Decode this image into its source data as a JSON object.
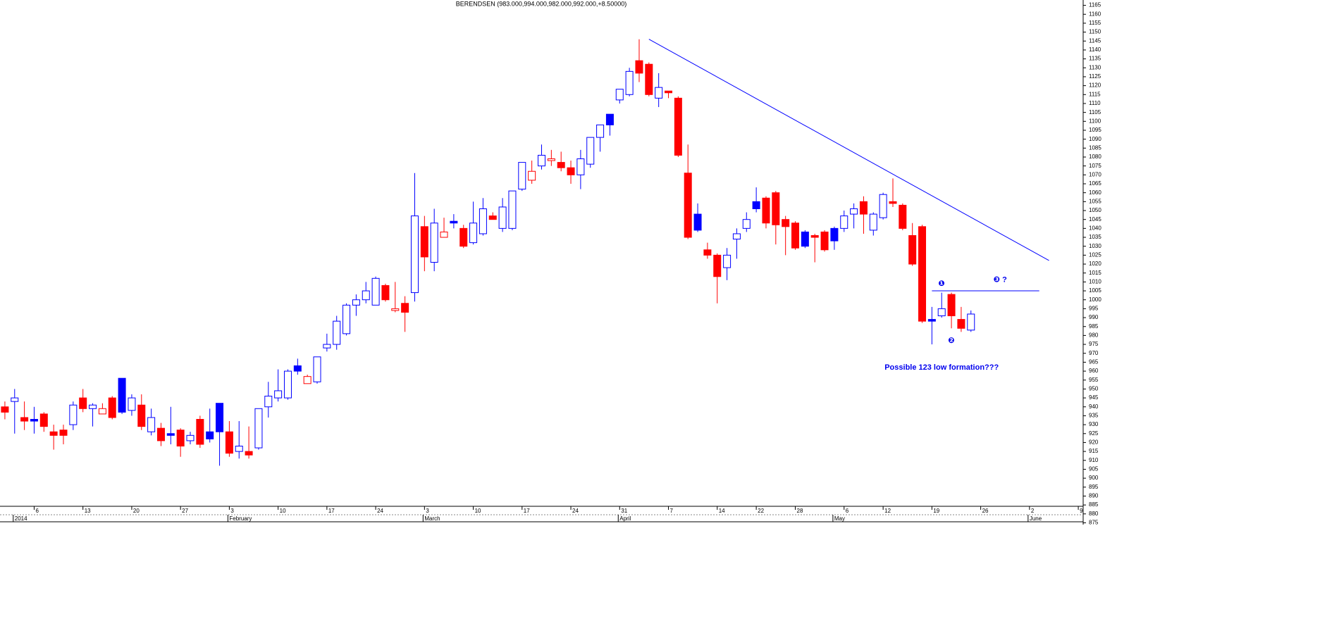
{
  "chart_data": {
    "type": "candlestick",
    "title": "BERENDSEN (983.000,994.000,982.000,992.000,+8.50000)",
    "open": [
      940,
      943,
      934,
      932,
      936,
      926,
      927,
      930,
      945,
      939,
      936,
      945,
      937,
      938,
      941,
      926,
      928,
      924,
      927,
      921,
      933,
      922,
      926,
      926,
      915,
      915,
      917,
      940,
      945,
      945,
      960,
      953,
      954,
      973,
      975,
      981,
      997,
      1000,
      997,
      1008,
      994,
      998,
      1004,
      1041,
      1021,
      1035,
      1043,
      1040,
      1032,
      1037,
      1047,
      1040,
      1040,
      1062,
      1067,
      1075,
      1078,
      1077,
      1074,
      1070,
      1076,
      1091,
      1098,
      1112,
      1115,
      1134,
      1132,
      1113,
      1117,
      1113,
      1071,
      1039,
      1028,
      1025,
      1018,
      1034,
      1040,
      1051,
      1057,
      1060,
      1045,
      1043,
      1030,
      1036,
      1038,
      1033,
      1040,
      1048,
      1055,
      1039,
      1046,
      1055,
      1053,
      1036,
      1041,
      988,
      991,
      1003,
      989,
      983
    ],
    "high": [
      943,
      950,
      943,
      940,
      937,
      930,
      930,
      943,
      950,
      942,
      942,
      946,
      956,
      947,
      947,
      939,
      931,
      940,
      928,
      926,
      935,
      939,
      942,
      932,
      932,
      929,
      939,
      954,
      961,
      961,
      967,
      958,
      968,
      981,
      991,
      998,
      1003,
      1010,
      1013,
      1009,
      1010,
      1002,
      1071,
      1047,
      1051,
      1046,
      1048,
      1042,
      1055,
      1057,
      1049,
      1057,
      1061,
      1077,
      1078,
      1087,
      1084,
      1083,
      1078,
      1084,
      1091,
      1098,
      1104,
      1118,
      1130,
      1146,
      1133,
      1127,
      1117,
      1114,
      1087,
      1054,
      1032,
      1026,
      1029,
      1040,
      1049,
      1063,
      1058,
      1061,
      1047,
      1044,
      1039,
      1037,
      1039,
      1041,
      1050,
      1054,
      1058,
      1049,
      1060,
      1068,
      1054,
      1043,
      1042,
      996,
      1004,
      1004,
      996,
      994
    ],
    "low": [
      933,
      925,
      927,
      925,
      926,
      916,
      919,
      927,
      937,
      929,
      936,
      933,
      936,
      935,
      927,
      924,
      918,
      919,
      912,
      919,
      917,
      920,
      907,
      912,
      911,
      911,
      916,
      934,
      943,
      944,
      958,
      953,
      953,
      971,
      972,
      980,
      991,
      998,
      997,
      999,
      993,
      982,
      999,
      1016,
      1016,
      1035,
      1040,
      1029,
      1031,
      1036,
      1045,
      1038,
      1039,
      1061,
      1065,
      1073,
      1075,
      1072,
      1065,
      1062,
      1074,
      1083,
      1092,
      1110,
      1114,
      1122,
      1114,
      1108,
      1113,
      1080,
      1034,
      1038,
      1023,
      998,
      1011,
      1023,
      1038,
      1049,
      1040,
      1031,
      1025,
      1028,
      1029,
      1021,
      1027,
      1028,
      1038,
      1040,
      1037,
      1036,
      1045,
      1052,
      1039,
      1019,
      987,
      975,
      990,
      984,
      982,
      982
    ],
    "close": [
      937,
      945,
      932,
      933,
      929,
      924,
      924,
      941,
      939,
      941,
      939,
      934,
      956,
      945,
      929,
      934,
      921,
      925,
      918,
      924,
      919,
      926,
      942,
      914,
      918,
      913,
      939,
      946,
      949,
      960,
      963,
      957,
      968,
      975,
      988,
      997,
      1000,
      1005,
      1012,
      1000,
      995,
      993,
      1047,
      1024,
      1043,
      1038,
      1044,
      1030,
      1043,
      1051,
      1045,
      1052,
      1061,
      1077,
      1072,
      1081,
      1079,
      1074,
      1070,
      1079,
      1091,
      1098,
      1104,
      1118,
      1128,
      1127,
      1115,
      1119,
      1116,
      1081,
      1035,
      1048,
      1025,
      1013,
      1025,
      1037,
      1045,
      1055,
      1043,
      1042,
      1041,
      1029,
      1038,
      1035,
      1028,
      1040,
      1047,
      1051,
      1048,
      1048,
      1059,
      1054,
      1040,
      1020,
      988,
      989,
      995,
      991,
      984,
      992
    ],
    "styles": [
      "R",
      "b",
      "R",
      "B",
      "R",
      "R",
      "R",
      "b",
      "R",
      "b",
      "r",
      "R",
      "B",
      "b",
      "R",
      "b",
      "R",
      "B",
      "R",
      "b",
      "R",
      "B",
      "B",
      "R",
      "b",
      "R",
      "b",
      "b",
      "b",
      "b",
      "B",
      "r",
      "b",
      "b",
      "b",
      "b",
      "b",
      "b",
      "b",
      "R",
      "r",
      "R",
      "b",
      "R",
      "b",
      "r",
      "B",
      "R",
      "b",
      "b",
      "R",
      "b",
      "b",
      "b",
      "r",
      "b",
      "r",
      "R",
      "R",
      "b",
      "b",
      "b",
      "B",
      "b",
      "b",
      "R",
      "R",
      "b",
      "R",
      "R",
      "R",
      "B",
      "R",
      "R",
      "b",
      "b",
      "b",
      "B",
      "R",
      "R",
      "R",
      "R",
      "B",
      "R",
      "R",
      "B",
      "b",
      "b",
      "R",
      "b",
      "b",
      "R",
      "R",
      "R",
      "R",
      "B",
      "b",
      "R",
      "R",
      "b"
    ],
    "colors": {
      "R": "#ff0000",
      "r": "#ff0000",
      "B": "#0000ff",
      "b": "#0000ff"
    },
    "hollow": [
      "r",
      "b"
    ],
    "xlim": [
      -0.5,
      110.5
    ],
    "ylim": [
      874,
      1168
    ],
    "yticks": [
      875,
      880,
      885,
      890,
      895,
      900,
      905,
      910,
      915,
      920,
      925,
      930,
      935,
      940,
      945,
      950,
      955,
      960,
      965,
      970,
      975,
      980,
      985,
      990,
      995,
      1000,
      1005,
      1010,
      1015,
      1020,
      1025,
      1030,
      1035,
      1040,
      1045,
      1050,
      1055,
      1060,
      1065,
      1070,
      1075,
      1080,
      1085,
      1090,
      1095,
      1100,
      1105,
      1110,
      1115,
      1120,
      1125,
      1130,
      1135,
      1140,
      1145,
      1150,
      1155,
      1160,
      1165
    ],
    "xticks": [
      {
        "value": 3,
        "label": "6"
      },
      {
        "value": 8,
        "label": "13"
      },
      {
        "value": 13,
        "label": "20"
      },
      {
        "value": 18,
        "label": "27"
      },
      {
        "value": 23,
        "label": "3"
      },
      {
        "value": 28,
        "label": "10"
      },
      {
        "value": 33,
        "label": "17"
      },
      {
        "value": 38,
        "label": "24"
      },
      {
        "value": 43,
        "label": "3"
      },
      {
        "value": 48,
        "label": "10"
      },
      {
        "value": 53,
        "label": "17"
      },
      {
        "value": 58,
        "label": "24"
      },
      {
        "value": 63,
        "label": "31"
      },
      {
        "value": 68,
        "label": "7"
      },
      {
        "value": 73,
        "label": "14"
      },
      {
        "value": 77,
        "label": "22"
      },
      {
        "value": 81,
        "label": "28"
      },
      {
        "value": 86,
        "label": "6"
      },
      {
        "value": 90,
        "label": "12"
      },
      {
        "value": 95,
        "label": "19"
      },
      {
        "value": 100,
        "label": "26"
      },
      {
        "value": 105,
        "label": "2"
      },
      {
        "value": 110,
        "label": "9"
      }
    ],
    "months": [
      {
        "value": 1,
        "label": "2014"
      },
      {
        "value": 23,
        "label": "February"
      },
      {
        "value": 43,
        "label": "March"
      },
      {
        "value": 63,
        "label": "April"
      },
      {
        "value": 85,
        "label": "May"
      },
      {
        "value": 105,
        "label": "June"
      }
    ],
    "lines": [
      {
        "x": [
          66,
          107
        ],
        "y": [
          1146,
          1022
        ],
        "color": "#0000ff"
      },
      {
        "x": [
          95,
          106
        ],
        "y": [
          1005,
          1005
        ],
        "color": "#0000ff"
      }
    ],
    "annotations": [
      {
        "text": "❶",
        "x": 96,
        "y": 1009
      },
      {
        "text": "❷",
        "x": 97,
        "y": 977
      },
      {
        "text": "❸ ?",
        "x": 102,
        "y": 1011
      },
      {
        "text": "Possible 123 low formation???",
        "x": 96,
        "y": 962
      }
    ]
  }
}
